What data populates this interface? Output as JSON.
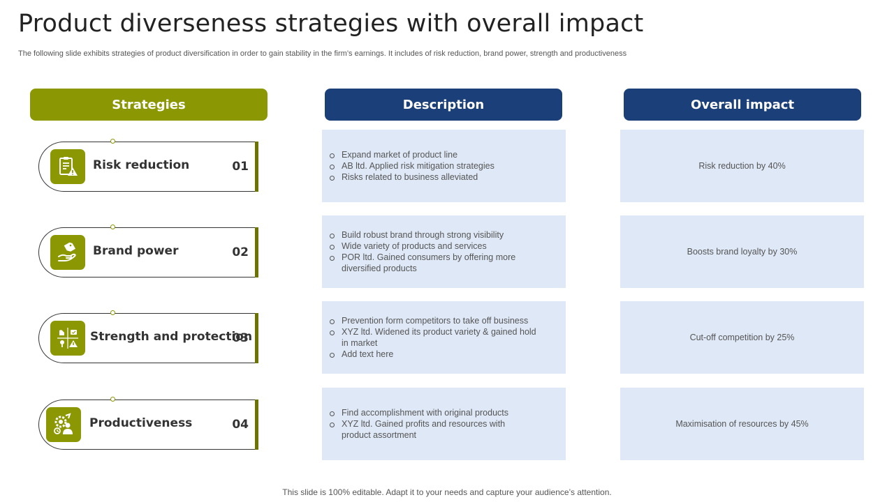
{
  "slide": {
    "title": "Product diverseness strategies with overall impact",
    "subtitle": "The following slide exhibits strategies of product diversification in order to gain stability in the firm’s earnings. It includes of risk reduction, brand power, strength and productiveness",
    "footer": "This slide is 100% editable. Adapt it to your needs and capture your audience’s attention."
  },
  "headers": {
    "strategies": "Strategies",
    "description": "Description",
    "impact": "Overall impact"
  },
  "colors": {
    "olive": "#8c9704",
    "navy": "#1b4079",
    "box": "#dfe8f6"
  },
  "rows": [
    {
      "strategy": "Risk reduction",
      "number": "01",
      "icon": "checklist-warning-icon",
      "description": [
        "Expand market of product line",
        "AB ltd. Applied risk mitigation strategies",
        "Risks related to business alleviated"
      ],
      "impact": "Risk reduction  by 40%"
    },
    {
      "strategy": "Brand power",
      "number": "02",
      "icon": "hand-tag-icon",
      "description": [
        "Build robust brand through strong visibility",
        "Wide variety of products and services",
        "POR ltd. Gained consumers by offering more diversified products"
      ],
      "impact": "Boosts brand loyalty by 30%"
    },
    {
      "strategy": "Strength and protection",
      "number": "03",
      "icon": "strength-shield-icon",
      "description": [
        "Prevention form competitors to take off business",
        "XYZ ltd. Widened its product variety & gained hold in market",
        "Add text here"
      ],
      "impact": "Cut-off competition by 25%"
    },
    {
      "strategy": "Productiveness",
      "number": "04",
      "icon": "gear-person-icon",
      "description": [
        "Find accomplishment with original products",
        "XYZ ltd. Gained profits and resources with product assortment"
      ],
      "impact": "Maximisation of resources by 45%"
    }
  ]
}
